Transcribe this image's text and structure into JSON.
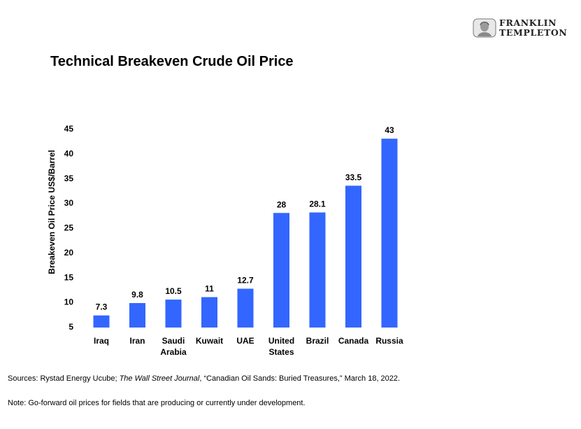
{
  "brand": {
    "line1": "FRANKLIN",
    "line2": "TEMPLETON"
  },
  "colors": {
    "bar": "#3366ff",
    "text": "#000000"
  },
  "chart_data": {
    "type": "bar",
    "title": "Technical Breakeven Crude Oil Price",
    "ylabel": "Breakeven Oil Price US$/Barrel",
    "xlabel": "",
    "ylim": [
      5,
      45
    ],
    "yticks": [
      5,
      10,
      15,
      20,
      25,
      30,
      35,
      40,
      45
    ],
    "grid": false,
    "categories": [
      "Iraq",
      "Iran",
      "Saudi\nArabia",
      "Kuwait",
      "UAE",
      "United\nStates",
      "Brazil",
      "Canada",
      "Russia"
    ],
    "values": [
      7.3,
      9.8,
      10.5,
      11,
      12.7,
      28,
      28.1,
      33.5,
      43
    ],
    "value_labels": [
      "7.3",
      "9.8",
      "10.5",
      "11",
      "12.7",
      "28",
      "28.1",
      "33.5",
      "43"
    ]
  },
  "footer": {
    "source_pre": "Sources: Rystad Energy Ucube; ",
    "source_pub": "The Wall Street Journal",
    "source_post": ", “Canadian Oil Sands: Buried Treasures,” March 18, 2022.",
    "note": "Note: Go-forward oil prices for fields that are producing or currently under development."
  }
}
